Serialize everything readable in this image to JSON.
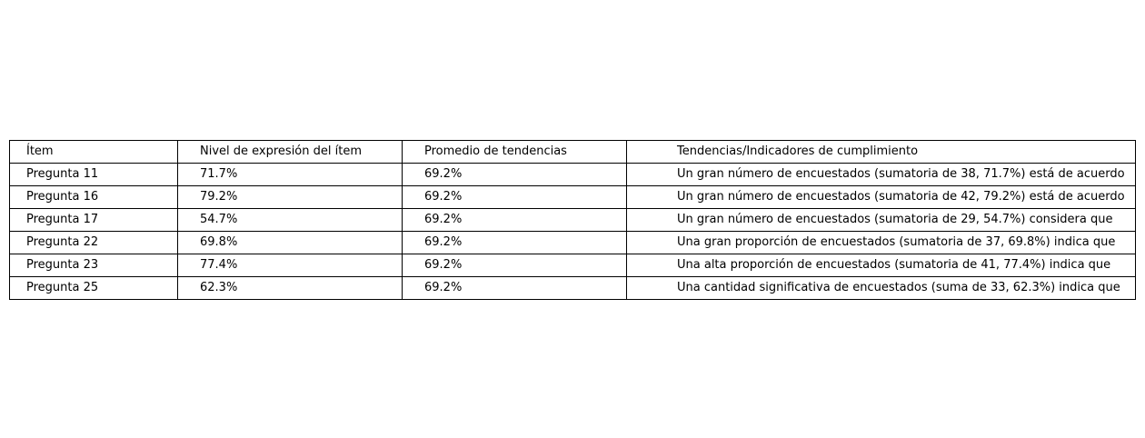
{
  "chart_data": {
    "type": "table",
    "columns": [
      "Ítem",
      "Nivel de expresión del ítem",
      "Promedio de tendencias",
      "Tendencias/Indicadores de cumplimiento"
    ],
    "rows": [
      [
        "Pregunta 11",
        "71.7%",
        "69.2%",
        "Un gran número de encuestados (sumatoria de 38, 71.7%) está de acuerdo"
      ],
      [
        "Pregunta 16",
        "79.2%",
        "69.2%",
        "Un gran número de encuestados (sumatoria de 42, 79.2%) está de acuerdo"
      ],
      [
        "Pregunta 17",
        "54.7%",
        "69.2%",
        "Un gran número de encuestados (sumatoria de 29, 54.7%) considera que"
      ],
      [
        "Pregunta 22",
        "69.8%",
        "69.2%",
        "Una gran proporción de encuestados (sumatoria de 37, 69.8%) indica que"
      ],
      [
        "Pregunta 23",
        "77.4%",
        "69.2%",
        "Una alta proporción de encuestados (sumatoria de 41, 77.4%) indica que"
      ],
      [
        "Pregunta 25",
        "62.3%",
        "69.2%",
        "Una cantidad significativa de encuestados (suma de 33, 62.3%) indica que"
      ]
    ]
  }
}
